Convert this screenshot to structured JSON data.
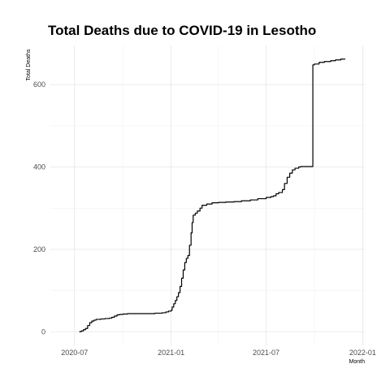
{
  "chart_data": {
    "type": "line",
    "title": "Total Deaths due to COVID-19 in Lesotho",
    "xlabel": "Month",
    "ylabel": "Total Deaths",
    "x_ticks": [
      "2020-07",
      "2021-01",
      "2021-07",
      "2022-01"
    ],
    "y_ticks": [
      0,
      200,
      400,
      600
    ],
    "xlim": [
      "2020-05-16",
      "2022-01-05"
    ],
    "ylim": [
      -33,
      695
    ],
    "grid": true,
    "legend": "none",
    "line_color": "#000000",
    "series": [
      {
        "x": [
          "2020-07-10",
          "2020-07-14",
          "2020-07-18",
          "2020-07-22",
          "2020-07-26",
          "2020-07-30",
          "2020-08-03",
          "2020-08-07",
          "2020-08-11",
          "2020-08-15",
          "2020-08-20",
          "2020-08-28",
          "2020-09-05",
          "2020-09-10",
          "2020-09-15",
          "2020-09-20",
          "2020-09-25",
          "2020-10-01",
          "2020-10-10",
          "2020-10-20",
          "2020-11-01",
          "2020-11-15",
          "2020-12-01",
          "2020-12-15",
          "2020-12-22",
          "2020-12-27",
          "2021-01-01",
          "2021-01-03",
          "2021-01-06",
          "2021-01-09",
          "2021-01-12",
          "2021-01-15",
          "2021-01-18",
          "2021-01-21",
          "2021-01-24",
          "2021-01-27",
          "2021-01-30",
          "2021-02-02",
          "2021-02-05",
          "2021-02-08",
          "2021-02-10",
          "2021-02-12",
          "2021-02-16",
          "2021-02-20",
          "2021-02-25",
          "2021-03-01",
          "2021-03-10",
          "2021-03-20",
          "2021-04-01",
          "2021-04-15",
          "2021-05-01",
          "2021-05-15",
          "2021-06-01",
          "2021-06-15",
          "2021-07-01",
          "2021-07-10",
          "2021-07-15",
          "2021-07-20",
          "2021-07-25",
          "2021-08-01",
          "2021-08-05",
          "2021-08-10",
          "2021-08-15",
          "2021-08-20",
          "2021-08-25",
          "2021-09-01",
          "2021-09-05",
          "2021-09-10",
          "2021-09-20",
          "2021-09-26",
          "2021-09-28",
          "2021-10-01",
          "2021-10-10",
          "2021-10-20",
          "2021-11-01",
          "2021-11-10",
          "2021-11-20",
          "2021-11-28"
        ],
        "y": [
          0,
          2,
          5,
          8,
          15,
          22,
          26,
          28,
          30,
          30,
          31,
          32,
          33,
          35,
          38,
          41,
          42,
          43,
          44,
          44,
          44,
          44,
          45,
          46,
          48,
          50,
          52,
          60,
          68,
          76,
          85,
          95,
          110,
          130,
          150,
          168,
          178,
          185,
          210,
          240,
          265,
          283,
          288,
          293,
          300,
          307,
          310,
          313,
          314,
          315,
          316,
          318,
          320,
          323,
          326,
          328,
          330,
          335,
          338,
          345,
          360,
          375,
          385,
          393,
          397,
          400,
          401,
          401,
          401,
          401,
          648,
          650,
          654,
          656,
          658,
          660,
          662,
          663
        ]
      }
    ]
  }
}
